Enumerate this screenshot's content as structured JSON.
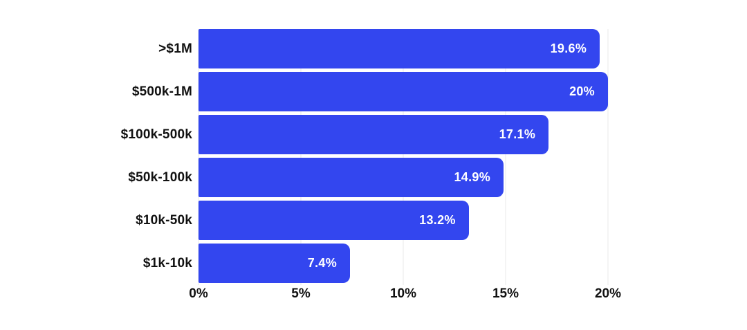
{
  "chart_data": {
    "type": "bar",
    "orientation": "horizontal",
    "title": "",
    "xlabel": "",
    "ylabel": "",
    "categories": [
      ">$1M",
      "$500k-1M",
      "$100k-500k",
      "$50k-100k",
      "$10k-50k",
      "$1k-10k"
    ],
    "values": [
      19.6,
      20,
      17.1,
      14.9,
      13.2,
      7.4
    ],
    "value_labels": [
      "19.6%",
      "20%",
      "17.1%",
      "14.9%",
      "13.2%",
      "7.4%"
    ],
    "x_ticks": [
      "0%",
      "5%",
      "10%",
      "15%",
      "20%"
    ],
    "xlim": [
      0,
      20
    ],
    "grid": true,
    "legend": false,
    "colors": {
      "bar": "#3346ef",
      "value_label": "#ffffff",
      "gridline": "#e9e9e9",
      "axis_text": "#111111",
      "background": "#ffffff"
    }
  }
}
